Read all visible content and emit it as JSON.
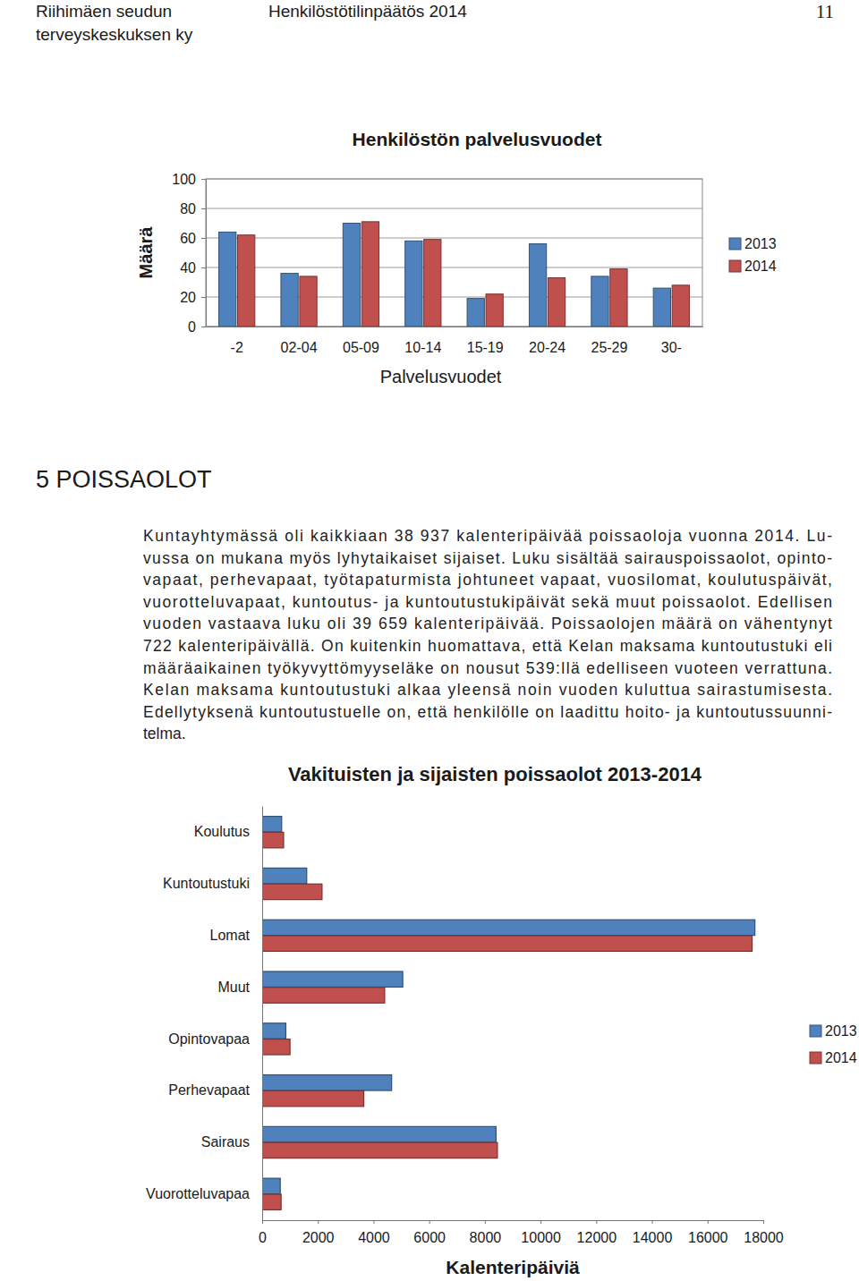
{
  "header": {
    "left": [
      "Riihimäen seudun",
      "terveyskeskuksen ky"
    ],
    "title": "Henkilöstötilinpäätös 2014",
    "page": "11"
  },
  "chart_data": [
    {
      "type": "bar",
      "title": "Henkilöstön palvelusvuodet",
      "x_label": "Palvelusvuodet",
      "y_label": "Määrä",
      "categories": [
        "-2",
        "02-04",
        "05-09",
        "10-14",
        "15-19",
        "20-24",
        "25-29",
        "30-"
      ],
      "series": [
        {
          "name": "2013",
          "color": "#4f81bd",
          "values": [
            64,
            36,
            70,
            58,
            19,
            56,
            34,
            26
          ]
        },
        {
          "name": "2014",
          "color": "#c0504d",
          "values": [
            62,
            34,
            71,
            59,
            22,
            33,
            39,
            28
          ]
        }
      ],
      "ylim": [
        0,
        100
      ],
      "yticks": [
        0,
        20,
        40,
        60,
        80,
        100
      ],
      "grid": true,
      "legend": "right"
    },
    {
      "type": "bar",
      "orientation": "horizontal",
      "title": "Vakituisten ja sijaisten poissaolot 2013-2014",
      "x_label": "Kalenteripäiviä",
      "categories": [
        "Koulutus",
        "Kuntoutustuki",
        "Lomat",
        "Muut",
        "Opintovapaa",
        "Perhevapaat",
        "Sairaus",
        "Vuorotteluvapaa"
      ],
      "series": [
        {
          "name": "2013",
          "color": "#4f81bd",
          "values": [
            700,
            1600,
            17700,
            5050,
            850,
            4650,
            8400,
            650
          ]
        },
        {
          "name": "2014",
          "color": "#c0504d",
          "values": [
            770,
            2150,
            17600,
            4400,
            1000,
            3650,
            8450,
            680
          ]
        }
      ],
      "xlim": [
        0,
        18000
      ],
      "xticks": [
        0,
        2000,
        4000,
        6000,
        8000,
        10000,
        12000,
        14000,
        16000,
        18000
      ],
      "grid": false,
      "legend": "right"
    }
  ],
  "section": {
    "heading": "5 POISSAOLOT",
    "paragraph": [
      "Kuntayhtymässä oli kaikkiaan 38 937 kalenteripäivää poissaoloja vuonna 2014. Lu-",
      "vussa on mukana myös lyhytaikaiset sijaiset. Luku sisältää sairauspoissaolot, opinto-",
      "vapaat, perhevapaat, työtapaturmista johtuneet vapaat, vuosilomat, koulutuspäivät,",
      "vuorotteluvapaat, kuntoutus- ja kuntoutustukipäivät sekä muut poissaolot. Edellisen",
      "vuoden vastaava luku oli 39 659 kalenteripäivää. Poissaolojen määrä on vähentynyt",
      "722 kalenteripäivällä. On kuitenkin huomattava, että Kelan maksama kuntoutustuki eli",
      "määräaikainen työkyvyttömyyseläke on nousut 539:llä edelliseen vuoteen verrattuna.",
      "Kelan maksama kuntoutustuki alkaa yleensä noin vuoden kuluttua sairastumisesta.",
      "Edellytyksenä kuntoutustuelle on, että henkilölle on laadittu hoito- ja kuntoutussuunni-",
      "telma."
    ]
  }
}
